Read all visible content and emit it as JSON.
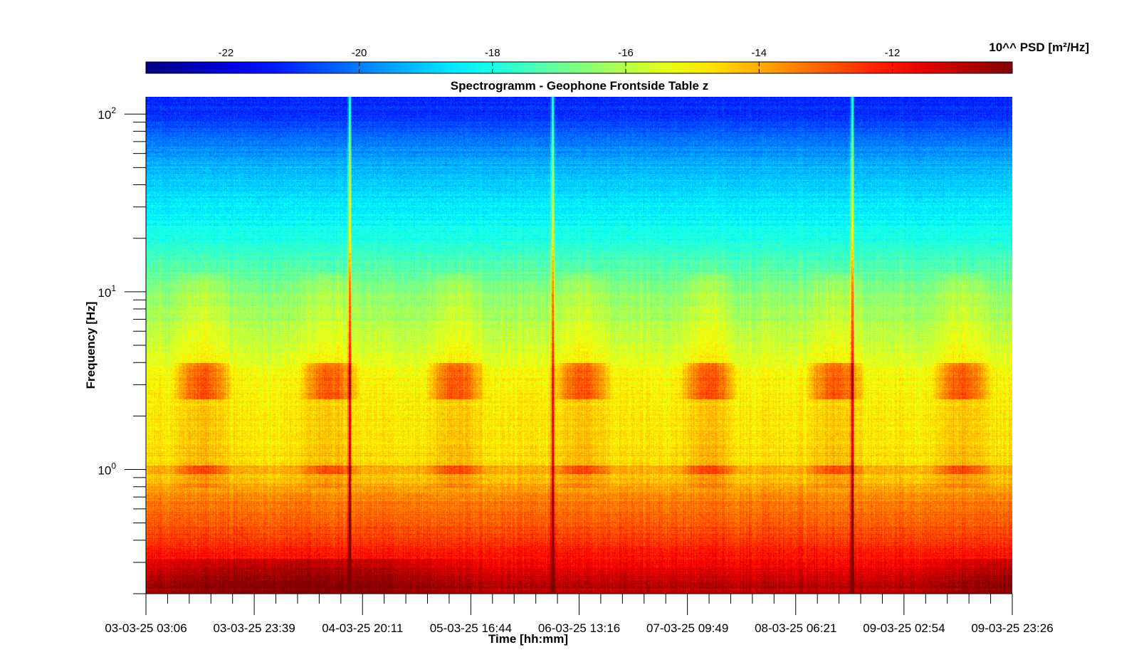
{
  "chart_data": {
    "type": "heatmap",
    "title": "Spectrogramm - Geophone Frontside Table z",
    "xlabel": "Time [hh:mm]",
    "ylabel": "Frequency [Hz]",
    "x_tick_labels": [
      "03-03-25 03:06",
      "03-03-25 23:39",
      "04-03-25 20:11",
      "05-03-25 16:44",
      "06-03-25 13:16",
      "07-03-25 09:49",
      "08-03-25 06:21",
      "09-03-25 02:54",
      "09-03-25 23:26"
    ],
    "y_scale": "log",
    "ylim_hz": [
      0.2,
      125
    ],
    "y_ticks": [
      {
        "base": "10",
        "exp": "0",
        "value": 1
      },
      {
        "base": "10",
        "exp": "1",
        "value": 10
      },
      {
        "base": "10",
        "exp": "2",
        "value": 100
      }
    ],
    "colorbar": {
      "label": "10^^ PSD [m²/Hz]",
      "placement": "top",
      "colormap": "jet",
      "range": [
        -23.2,
        -10.2
      ],
      "ticks": [
        -22,
        -20,
        -18,
        -16,
        -14,
        -12
      ],
      "tick_labels": [
        "-22",
        "-20",
        "-18",
        "-16",
        "-14",
        "-12"
      ]
    },
    "features": {
      "vertical_spikes_time": [
        "04-03-25 16:00",
        "06-03-25 04:00",
        "08-03-25 13:00"
      ],
      "persistent_line_hz": 1.0,
      "daily_activity_band_hz": [
        2.5,
        4.0
      ],
      "level_by_frequency": [
        {
          "hz": 0.22,
          "log_psd": -11.0
        },
        {
          "hz": 0.4,
          "log_psd": -12.5
        },
        {
          "hz": 0.7,
          "log_psd": -13.5
        },
        {
          "hz": 1.0,
          "log_psd": -14.6
        },
        {
          "hz": 3.0,
          "log_psd": -15.0
        },
        {
          "hz": 10.0,
          "log_psd": -16.6
        },
        {
          "hz": 20.0,
          "log_psd": -18.0
        },
        {
          "hz": 50.0,
          "log_psd": -19.2
        },
        {
          "hz": 100.0,
          "log_psd": -21.0
        }
      ]
    }
  }
}
